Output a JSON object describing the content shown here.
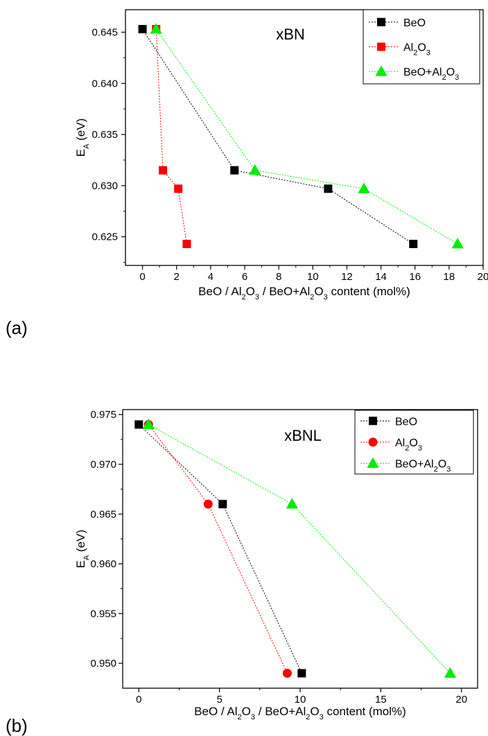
{
  "chart_data": [
    {
      "type": "line",
      "panel_label": "(a)",
      "annotation": "xBN",
      "xlabel": "BeO / Al2O3 / BeO+Al2O3 content (mol%)",
      "ylabel": "EA (eV)",
      "xlim": [
        -1,
        20
      ],
      "ylim": [
        0.6222,
        0.6472
      ],
      "xticks": [
        "0",
        "2",
        "4",
        "6",
        "8",
        "10",
        "12",
        "14",
        "16",
        "18",
        "20"
      ],
      "yticks": [
        "0.625",
        "0.630",
        "0.635",
        "0.640",
        "0.645"
      ],
      "legend_position": "top-right",
      "series": [
        {
          "name": "BeO",
          "color": "#000000",
          "marker": "square",
          "x": [
            0,
            5.4,
            10.9,
            15.9
          ],
          "y": [
            0.6453,
            0.6315,
            0.6297,
            0.6243
          ]
        },
        {
          "name": "Al2O3",
          "color": "#ff0000",
          "marker": "square",
          "x": [
            0.8,
            1.2,
            2.1,
            2.6
          ],
          "y": [
            0.6453,
            0.6315,
            0.6297,
            0.6243
          ]
        },
        {
          "name": "BeO+Al2O3",
          "color": "#00ee00",
          "marker": "triangle",
          "x": [
            0.8,
            6.6,
            13.0,
            18.5
          ],
          "y": [
            0.6453,
            0.6315,
            0.6297,
            0.6243
          ]
        }
      ]
    },
    {
      "type": "line",
      "panel_label": "(b)",
      "annotation": "xBNL",
      "xlabel": "BeO / Al2O3 / BeO+Al2O3 content (mol%)",
      "ylabel": "EA (eV)",
      "xlim": [
        -1,
        21
      ],
      "ylim": [
        0.9475,
        0.9755
      ],
      "xticks": [
        "0",
        "5",
        "10",
        "15",
        "20"
      ],
      "yticks": [
        "0.950",
        "0.955",
        "0.960",
        "0.965",
        "0.970",
        "0.975"
      ],
      "legend_position": "top-right",
      "series": [
        {
          "name": "BeO",
          "color": "#000000",
          "marker": "square",
          "x": [
            0,
            5.2,
            10.1
          ],
          "y": [
            0.974,
            0.966,
            0.949
          ]
        },
        {
          "name": "Al2O3",
          "color": "#ff0000",
          "marker": "circle",
          "x": [
            0.6,
            4.3,
            9.2
          ],
          "y": [
            0.974,
            0.966,
            0.949
          ]
        },
        {
          "name": "BeO+Al2O3",
          "color": "#00ee00",
          "marker": "triangle",
          "x": [
            0.6,
            9.5,
            19.3
          ],
          "y": [
            0.974,
            0.966,
            0.949
          ]
        }
      ]
    }
  ]
}
